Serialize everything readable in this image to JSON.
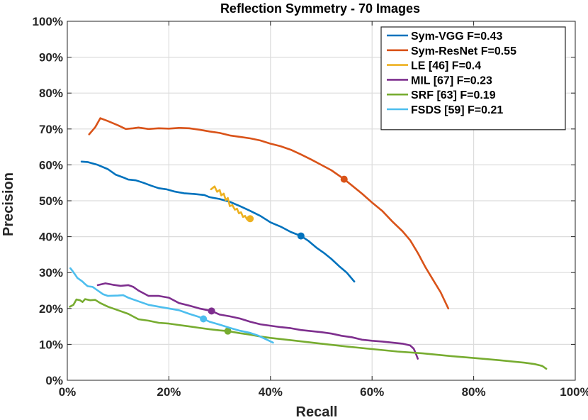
{
  "chart_data": {
    "type": "line",
    "title": "Reflection Symmetry - 70 Images",
    "xlabel": "Recall",
    "ylabel": "Precision",
    "xlim": [
      0,
      100
    ],
    "ylim": [
      0,
      100
    ],
    "x_ticks": [
      "0%",
      "20%",
      "40%",
      "60%",
      "80%",
      "100%"
    ],
    "y_ticks": [
      "0%",
      "10%",
      "20%",
      "30%",
      "40%",
      "50%",
      "60%",
      "70%",
      "80%",
      "90%",
      "100%"
    ],
    "grid": true,
    "legend_position": "top-right",
    "series": [
      {
        "name": "Sym-VGG F=0.43",
        "color": "#0072BD",
        "marker": [
          46,
          40.2
        ],
        "points": [
          [
            2.8,
            60.9
          ],
          [
            4,
            60.8
          ],
          [
            6,
            60
          ],
          [
            8,
            58.8
          ],
          [
            9.5,
            57.3
          ],
          [
            11,
            56.5
          ],
          [
            12,
            55.9
          ],
          [
            13.5,
            55.7
          ],
          [
            15,
            55
          ],
          [
            16.5,
            54.2
          ],
          [
            18,
            53.5
          ],
          [
            19.5,
            53.2
          ],
          [
            21,
            52.6
          ],
          [
            23,
            52.1
          ],
          [
            25,
            51.9
          ],
          [
            27,
            51.6
          ],
          [
            28,
            51
          ],
          [
            30,
            50.5
          ],
          [
            32,
            49.7
          ],
          [
            34,
            48.5
          ],
          [
            36,
            47.2
          ],
          [
            38,
            45.8
          ],
          [
            40,
            44
          ],
          [
            42,
            42.8
          ],
          [
            44,
            41.3
          ],
          [
            46,
            40.2
          ],
          [
            47.5,
            38.8
          ],
          [
            49,
            37
          ],
          [
            50.5,
            35.5
          ],
          [
            52,
            33.8
          ],
          [
            53.5,
            31.8
          ],
          [
            55,
            30
          ],
          [
            56.5,
            27.5
          ]
        ]
      },
      {
        "name": "Sym-ResNet F=0.55",
        "color": "#D95319",
        "marker": [
          54.5,
          56
        ],
        "points": [
          [
            4.3,
            68.5
          ],
          [
            5.5,
            70.5
          ],
          [
            6.5,
            73
          ],
          [
            8,
            72.2
          ],
          [
            10,
            71
          ],
          [
            11.5,
            70
          ],
          [
            13,
            70.2
          ],
          [
            14,
            70.4
          ],
          [
            16,
            70
          ],
          [
            18,
            70.2
          ],
          [
            20,
            70.1
          ],
          [
            22,
            70.3
          ],
          [
            24,
            70.2
          ],
          [
            26,
            69.8
          ],
          [
            28,
            69.3
          ],
          [
            30,
            68.9
          ],
          [
            32,
            68.2
          ],
          [
            34,
            67.8
          ],
          [
            36,
            67.4
          ],
          [
            38,
            66.8
          ],
          [
            40,
            65.9
          ],
          [
            42,
            65.2
          ],
          [
            44,
            64.2
          ],
          [
            46,
            62.9
          ],
          [
            48,
            61.5
          ],
          [
            50,
            60
          ],
          [
            52,
            58.5
          ],
          [
            54.5,
            56
          ],
          [
            56,
            54.3
          ],
          [
            58,
            52
          ],
          [
            60,
            49.5
          ],
          [
            62,
            47.2
          ],
          [
            64,
            44.2
          ],
          [
            66,
            41.5
          ],
          [
            67.5,
            39
          ],
          [
            69,
            35.5
          ],
          [
            70.5,
            31.5
          ],
          [
            72,
            28
          ],
          [
            73.5,
            24.5
          ],
          [
            75,
            20
          ]
        ]
      },
      {
        "name": "LE [46] F=0.4",
        "color": "#EDB120",
        "marker": [
          36,
          45
        ],
        "points": [
          [
            28.3,
            53.2
          ],
          [
            29,
            54
          ],
          [
            29.5,
            52.5
          ],
          [
            30,
            53
          ],
          [
            30.3,
            51.5
          ],
          [
            30.8,
            52
          ],
          [
            31.2,
            50.2
          ],
          [
            31.6,
            50.8
          ],
          [
            32,
            48.5
          ],
          [
            32.5,
            48.8
          ],
          [
            33,
            47.5
          ],
          [
            33.4,
            47.8
          ],
          [
            33.8,
            46.5
          ],
          [
            34.2,
            46.8
          ],
          [
            34.6,
            45.5
          ],
          [
            35,
            45.8
          ],
          [
            35.4,
            44.8
          ],
          [
            36,
            45
          ]
        ]
      },
      {
        "name": "MIL [67] F=0.23",
        "color": "#7E2F8E",
        "marker": [
          28.4,
          19.3
        ],
        "points": [
          [
            6,
            26.5
          ],
          [
            7.5,
            27
          ],
          [
            9,
            26.6
          ],
          [
            10.5,
            26.3
          ],
          [
            12,
            26.5
          ],
          [
            13,
            26
          ],
          [
            14,
            25
          ],
          [
            16,
            23.5
          ],
          [
            18,
            23.5
          ],
          [
            20,
            23
          ],
          [
            22,
            21.5
          ],
          [
            24,
            20.8
          ],
          [
            26,
            20
          ],
          [
            28.4,
            19.3
          ],
          [
            30,
            18.3
          ],
          [
            32,
            17.8
          ],
          [
            34,
            17.2
          ],
          [
            36,
            16.3
          ],
          [
            38,
            15.6
          ],
          [
            40,
            15.2
          ],
          [
            42,
            14.8
          ],
          [
            44,
            14.5
          ],
          [
            46,
            14
          ],
          [
            48,
            13.7
          ],
          [
            50,
            13.4
          ],
          [
            52,
            13
          ],
          [
            54,
            12.4
          ],
          [
            56,
            12
          ],
          [
            58,
            11.3
          ],
          [
            60,
            11
          ],
          [
            62,
            10.8
          ],
          [
            64,
            10.5
          ],
          [
            66,
            10.2
          ],
          [
            67.5,
            9.7
          ],
          [
            68.2,
            8.8
          ],
          [
            68.6,
            7.5
          ],
          [
            69,
            6
          ]
        ]
      },
      {
        "name": "SRF [63] F=0.19",
        "color": "#77AC30",
        "marker": [
          31.6,
          13.7
        ],
        "points": [
          [
            0.5,
            20.5
          ],
          [
            1.2,
            21
          ],
          [
            1.8,
            22.5
          ],
          [
            2.5,
            22.3
          ],
          [
            3,
            21.8
          ],
          [
            3.5,
            22.6
          ],
          [
            4.5,
            22.3
          ],
          [
            5.5,
            22.4
          ],
          [
            6.5,
            21.5
          ],
          [
            8,
            20.5
          ],
          [
            10,
            19.5
          ],
          [
            12,
            18.5
          ],
          [
            14,
            17
          ],
          [
            16,
            16.6
          ],
          [
            18,
            16
          ],
          [
            20,
            15.8
          ],
          [
            22,
            15.4
          ],
          [
            24,
            15
          ],
          [
            26,
            14.6
          ],
          [
            28,
            14.2
          ],
          [
            30,
            13.9
          ],
          [
            31.6,
            13.7
          ],
          [
            34,
            13.1
          ],
          [
            36,
            12.7
          ],
          [
            38,
            12.2
          ],
          [
            40,
            11.8
          ],
          [
            45,
            11
          ],
          [
            50,
            10.2
          ],
          [
            55,
            9.4
          ],
          [
            60,
            8.7
          ],
          [
            65,
            8
          ],
          [
            70,
            7.5
          ],
          [
            75,
            6.8
          ],
          [
            80,
            6.2
          ],
          [
            85,
            5.6
          ],
          [
            90,
            4.9
          ],
          [
            92,
            4.5
          ],
          [
            93.5,
            4
          ],
          [
            94.3,
            3.2
          ]
        ]
      },
      {
        "name": "FSDS [59] F=0.21",
        "color": "#4DBEEE",
        "marker": [
          26.8,
          17.1
        ],
        "points": [
          [
            0.6,
            31.2
          ],
          [
            1,
            30.5
          ],
          [
            1.5,
            29.5
          ],
          [
            2,
            28.5
          ],
          [
            2.5,
            28
          ],
          [
            3,
            27.5
          ],
          [
            3.5,
            26.8
          ],
          [
            4,
            26.2
          ],
          [
            5,
            26
          ],
          [
            6,
            25
          ],
          [
            7,
            24
          ],
          [
            8,
            23.5
          ],
          [
            10,
            23.6
          ],
          [
            11,
            23.7
          ],
          [
            12,
            23
          ],
          [
            14,
            22
          ],
          [
            16,
            21
          ],
          [
            18,
            20.5
          ],
          [
            20,
            20
          ],
          [
            22,
            19.5
          ],
          [
            24,
            18.5
          ],
          [
            26,
            17.6
          ],
          [
            26.8,
            17.1
          ],
          [
            28,
            16.3
          ],
          [
            30,
            15.5
          ],
          [
            32,
            14.6
          ],
          [
            34,
            13.8
          ],
          [
            36,
            13.2
          ],
          [
            37.5,
            12.5
          ],
          [
            39,
            11.5
          ],
          [
            40.5,
            10.5
          ]
        ]
      }
    ]
  }
}
